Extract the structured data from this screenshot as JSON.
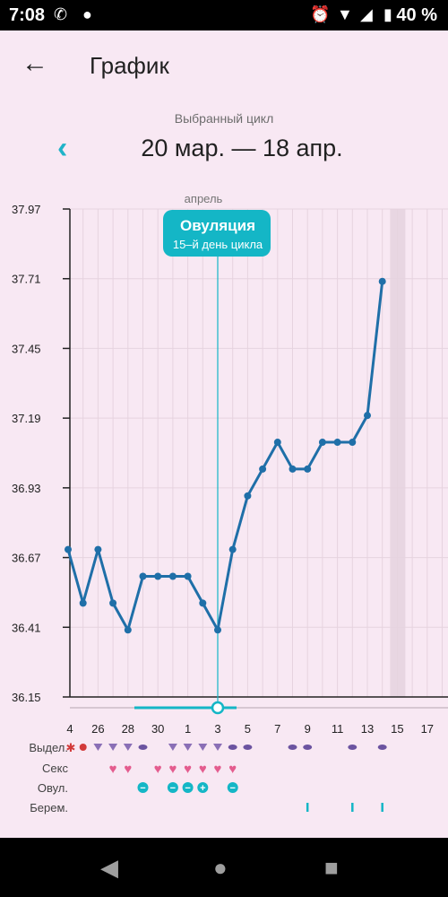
{
  "status": {
    "time": "7:08",
    "battery": "40 %"
  },
  "header": {
    "title": "График"
  },
  "cycle": {
    "label": "Выбранный цикл",
    "range": "20 мар. — 18 апр."
  },
  "chart_data": {
    "type": "line",
    "month_label": "апрель",
    "y_ticks": [
      "37.97",
      "37.71",
      "37.45",
      "37.19",
      "36.93",
      "36.67",
      "36.41",
      "36.15"
    ],
    "ylim": [
      36.15,
      37.97
    ],
    "x_labels": [
      "4",
      "26",
      "28",
      "30",
      "1",
      "3",
      "5",
      "7",
      "9",
      "11",
      "13",
      "15",
      "17"
    ],
    "day_index_of_label": [
      0,
      2,
      4,
      6,
      8,
      10,
      12,
      14,
      16,
      18,
      20,
      22,
      24
    ],
    "series": [
      {
        "values": [
          36.7,
          36.5,
          36.7,
          36.5,
          36.4,
          36.6,
          36.6,
          36.6,
          36.6,
          36.5,
          36.4,
          36.7,
          36.9,
          37.0,
          37.1,
          37.0,
          37.0,
          37.1,
          37.1,
          37.1,
          37.2,
          37.7
        ]
      }
    ],
    "ovulation_day_index": 10,
    "ovulation_title": "Овуляция",
    "ovulation_subtitle": "15–й день цикла",
    "highlight_day_index": 22,
    "colors": {
      "line": "#1f6fa8",
      "accent": "#14b6c6",
      "heart": "#e45c8e",
      "discharge": "#8a6fb6"
    }
  },
  "rows": [
    {
      "label": "Выдел.",
      "name": "discharge"
    },
    {
      "label": "Секс",
      "name": "sex"
    },
    {
      "label": "Овул.",
      "name": "ovulation-test"
    },
    {
      "label": "Берем.",
      "name": "pregnancy-test"
    }
  ]
}
